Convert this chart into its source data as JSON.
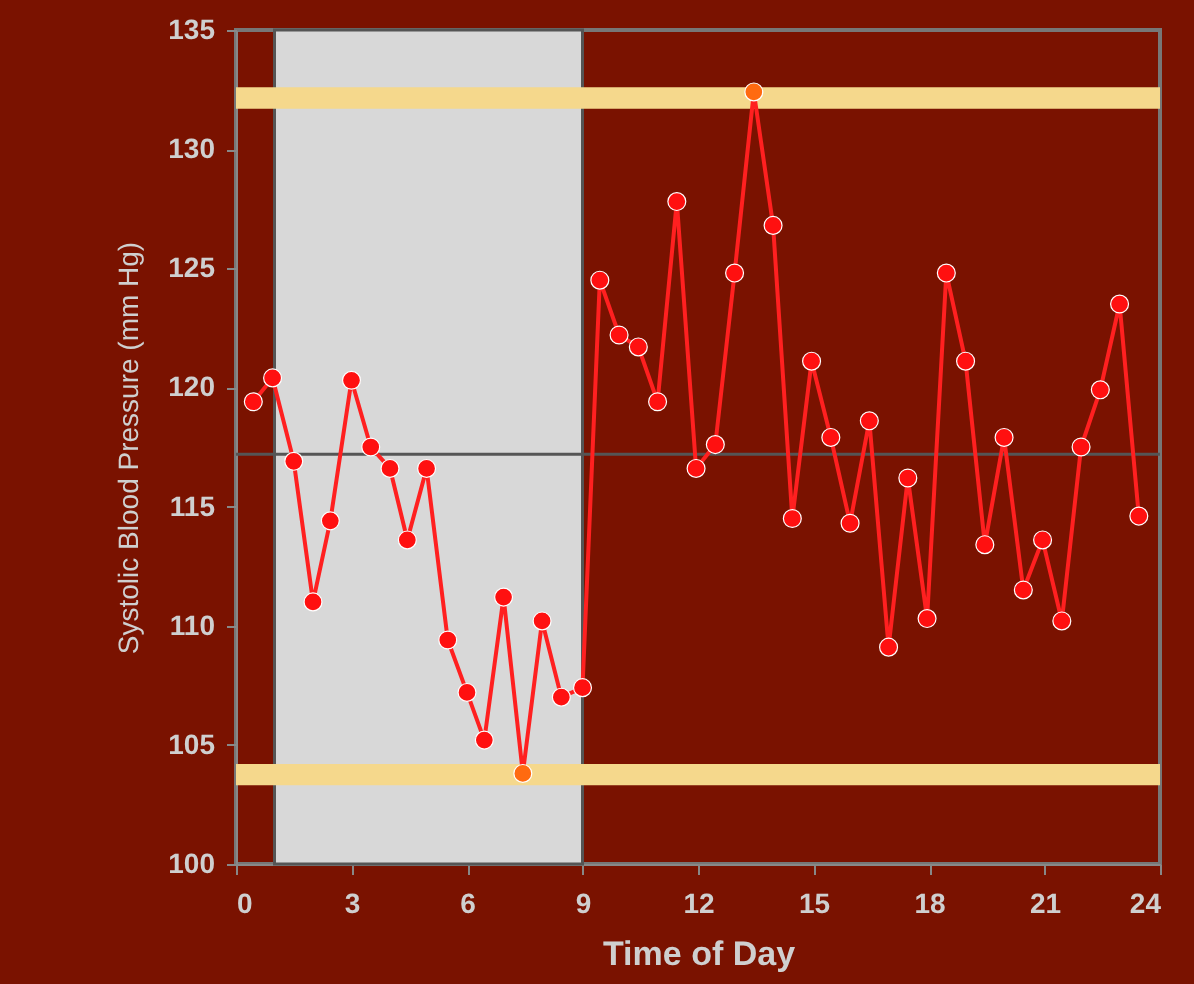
{
  "chart_data": {
    "type": "line",
    "xlabel": "Time of Day",
    "ylabel": "Systolic Blood Pressure (mm Hg)",
    "xlim": [
      0,
      24
    ],
    "xticks": [
      0,
      3,
      6,
      9,
      12,
      15,
      18,
      21,
      24
    ],
    "ylim": [
      100,
      135
    ],
    "yticks": [
      100,
      105,
      110,
      115,
      120,
      125,
      130,
      135
    ],
    "grid": false,
    "marker": "circle",
    "line_style": "solid",
    "series": [
      {
        "color": "#ff2020",
        "x": [
          0.45,
          0.95,
          1.5,
          2,
          2.45,
          3,
          3.5,
          4,
          4.45,
          4.95,
          5.5,
          6,
          6.45,
          6.95,
          7.45,
          7.95,
          8.45,
          9,
          9.45,
          9.95,
          10.45,
          10.95,
          11.45,
          11.95,
          12.45,
          12.95,
          13.45,
          13.95,
          14.45,
          14.95,
          15.45,
          15.95,
          16.45,
          16.95,
          17.45,
          17.95,
          18.45,
          18.95,
          19.45,
          19.95,
          20.45,
          20.95,
          21.45,
          21.95,
          22.45,
          22.95,
          23.45
        ],
        "values": [
          119.4,
          120.4,
          116.9,
          111.0,
          114.4,
          120.3,
          117.5,
          116.6,
          113.6,
          116.6,
          109.4,
          107.2,
          105.2,
          111.2,
          103.8,
          110.2,
          107.0,
          107.4,
          124.5,
          122.2,
          121.7,
          119.4,
          127.8,
          116.6,
          117.6,
          124.8,
          132.4,
          126.8,
          114.5,
          121.1,
          117.9,
          114.3,
          118.6,
          109.1,
          116.2,
          110.3,
          124.8,
          121.1,
          113.4,
          117.9,
          111.5,
          113.6,
          110.2,
          117.5,
          119.9,
          123.5,
          114.6
        ],
        "colors": [
          "#ff1010",
          "#ff1010",
          "#ff1010",
          "#ff1010",
          "#ff1010",
          "#ff1010",
          "#ff1010",
          "#ff1010",
          "#ff1010",
          "#ff1010",
          "#ff1010",
          "#ff1010",
          "#ff1010",
          "#ff1010",
          "#ff6a10",
          "#ff1010",
          "#ff1010",
          "#ff1010",
          "#ff1010",
          "#ff1010",
          "#ff1010",
          "#ff1010",
          "#ff1010",
          "#ff1010",
          "#ff1010",
          "#ff1010",
          "#ff6a10",
          "#ff1010",
          "#ff1010",
          "#ff1010",
          "#ff1010",
          "#ff1010",
          "#ff1010",
          "#ff1010",
          "#ff1010",
          "#ff1010",
          "#ff1010",
          "#ff1010",
          "#ff1010",
          "#ff1010",
          "#ff1010",
          "#ff1010",
          "#ff1010",
          "#ff1010",
          "#ff1010",
          "#ff1010",
          "#ff1010"
        ]
      }
    ],
    "bands": [
      {
        "axis": "x",
        "from": 1,
        "to": 9,
        "color": "#d8d8d8"
      },
      {
        "axis": "y",
        "from": 131.7,
        "to": 132.6,
        "color": "#f5d88c"
      },
      {
        "axis": "y",
        "from": 103.3,
        "to": 104.2,
        "color": "#f5d88c"
      }
    ],
    "ref_lines": [
      {
        "axis": "y",
        "value": 117.2,
        "color": "#555555"
      }
    ]
  }
}
